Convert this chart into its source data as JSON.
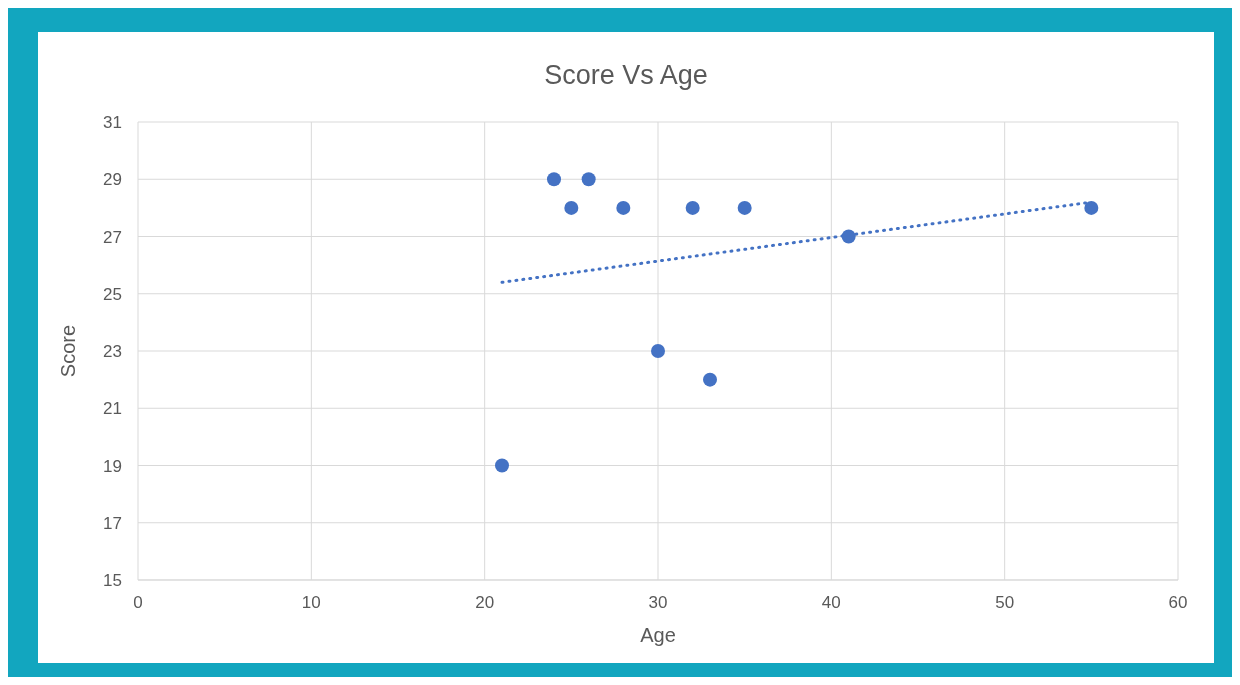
{
  "chart_data": {
    "type": "scatter",
    "title": "Score Vs Age",
    "xlabel": "Age",
    "ylabel": "Score",
    "series": [
      {
        "color": "#4472c4",
        "marker": "circle",
        "x": [
          21,
          24,
          25,
          26,
          28,
          30,
          32,
          33,
          35,
          41,
          55
        ],
        "values": [
          19,
          29,
          28,
          29,
          28,
          23,
          28,
          22,
          28,
          27,
          28
        ]
      },
      {
        "type": "line",
        "color": "#4472c4",
        "marker": "none",
        "line_style": "dotted",
        "x": [
          21,
          55
        ],
        "values": [
          25.4,
          28.2
        ]
      }
    ],
    "xlim": [
      0,
      60
    ],
    "xticks": [
      0,
      10,
      20,
      30,
      40,
      50,
      60
    ],
    "ylim": [
      15,
      31
    ],
    "yticks": [
      15,
      17,
      19,
      21,
      23,
      25,
      27,
      29,
      31
    ],
    "grid": true
  }
}
